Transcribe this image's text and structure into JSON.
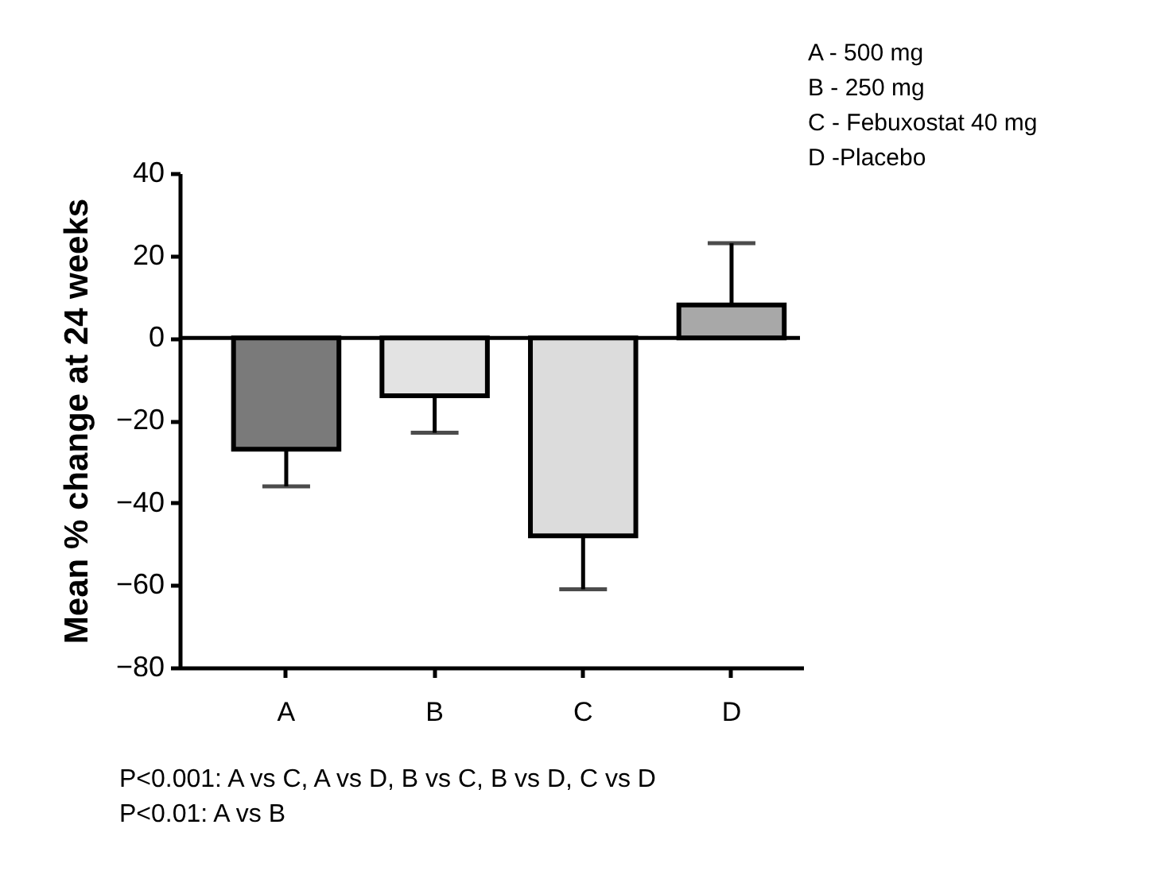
{
  "chart_data": {
    "type": "bar",
    "ylabel": "Mean % change at 24 weeks",
    "categories": [
      "A",
      "B",
      "C",
      "D"
    ],
    "values": [
      -27,
      -14,
      -48,
      8
    ],
    "colors": [
      "#7a7a7a",
      "#e3e3e3",
      "#dcdcdc",
      "#a8a8a8"
    ],
    "errors": [
      [
        -36,
        -27
      ],
      [
        -23,
        -14
      ],
      [
        -61,
        -48
      ],
      [
        8,
        23
      ]
    ],
    "ylim": [
      -80,
      40
    ],
    "yticks": [
      -80,
      -60,
      -40,
      -20,
      0,
      20,
      40
    ],
    "ref_lines": [
      {
        "axis": "y",
        "value": 0
      }
    ],
    "grid": false,
    "annotations": [
      "A - 500 mg",
      "B - 250 mg",
      "C - Febuxostat 40 mg",
      "D -Placebo",
      "P<0.001: A vs C, A vs D, B vs C, B vs D, C vs D",
      "P<0.01: A vs B"
    ]
  }
}
